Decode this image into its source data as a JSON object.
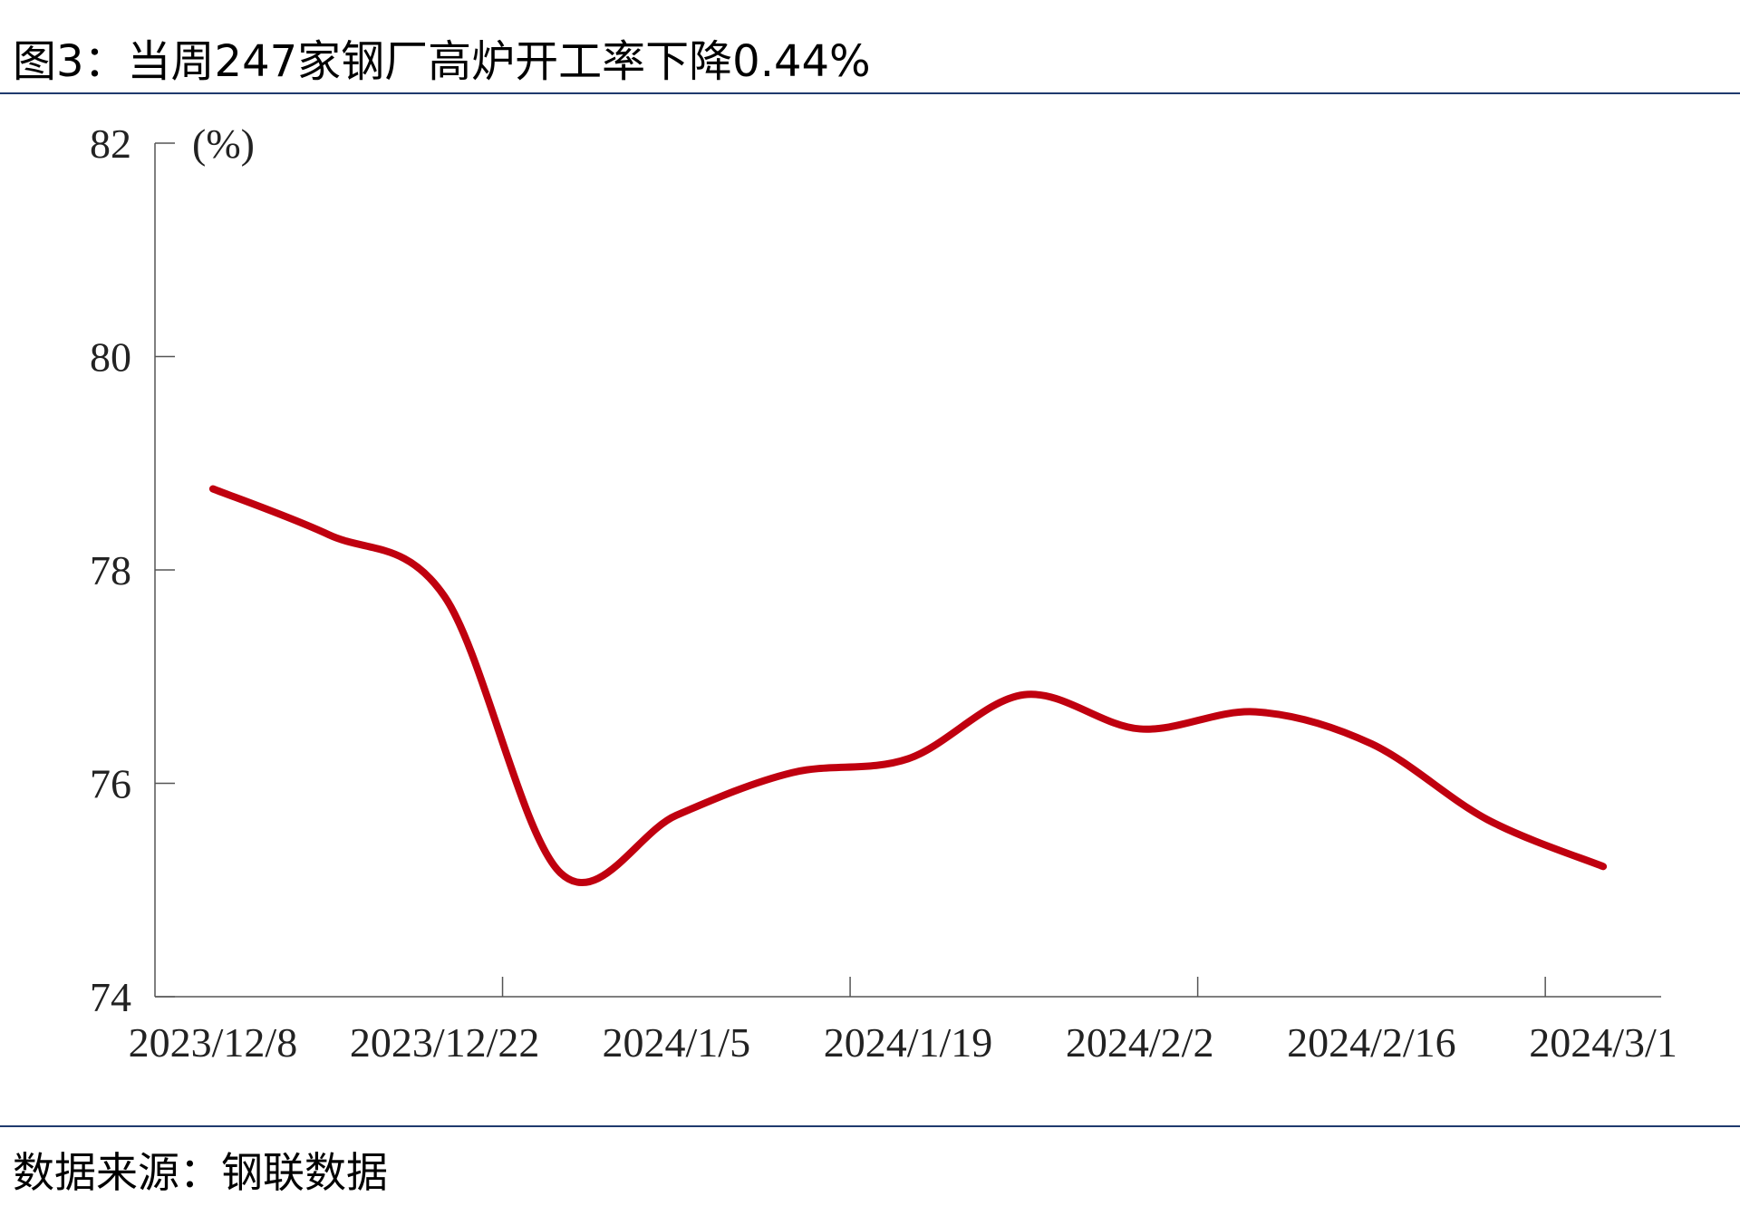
{
  "title": "图3：当周247家钢厂高炉开工率下降0.44%",
  "source": "数据来源：钢联数据",
  "chart_data": {
    "type": "line",
    "y_unit": "(%)",
    "categories": [
      "2023/12/8",
      null,
      "2023/12/22",
      null,
      "2024/1/5",
      null,
      "2024/1/19",
      null,
      "2024/2/2",
      null,
      "2024/2/16",
      null,
      "2024/3/1"
    ],
    "values": [
      78.76,
      78.33,
      77.75,
      75.16,
      75.7,
      76.1,
      76.23,
      76.83,
      76.51,
      76.67,
      76.37,
      75.66,
      75.22
    ],
    "color": "#c0000f",
    "ylim": [
      74,
      82
    ],
    "yticks": [
      74,
      76,
      78,
      80,
      82
    ]
  }
}
